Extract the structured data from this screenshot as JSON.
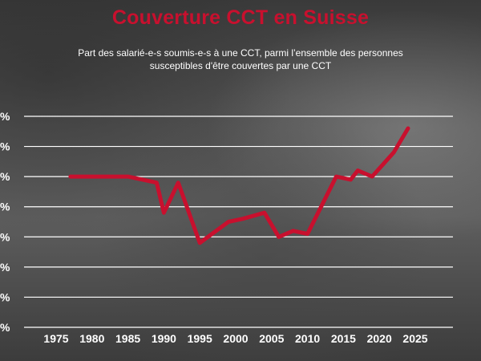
{
  "header": {
    "title": "Couverture CCT en Suisse",
    "subtitle": "Part des salarié-e-s soumis-e-s à une CCT, parmi l’ensemble des personnes susceptibles d'être couvertes par une CCT"
  },
  "colors": {
    "line": "#c8102e",
    "title": "#c8102e",
    "grid": "#ffffff",
    "text": "#ffffff"
  },
  "chart_data": {
    "type": "line",
    "title": "Couverture CCT en Suisse",
    "subtitle": "Part des salarié-e-s soumis-e-s à une CCT, parmi l’ensemble des personnes susceptibles d'être couvertes par une CCT",
    "xlabel": "",
    "ylabel": "",
    "x_ticks": [
      1975,
      1980,
      1985,
      1990,
      1995,
      2000,
      2005,
      2010,
      2015,
      2020,
      2025
    ],
    "y_tick_labels": [
      "%",
      "%",
      "%",
      "%",
      "%",
      "%",
      "%",
      "%"
    ],
    "xlim": [
      1975,
      2025
    ],
    "ylim": [
      0,
      7
    ],
    "grid": true,
    "series": [
      {
        "x": [
          1977,
          1979,
          1985,
          1989,
          1990,
          1992,
          1995,
          1999,
          2001,
          2004,
          2006,
          2008,
          2010,
          2014,
          2016,
          2017,
          2019,
          2022,
          2024
        ],
        "y": [
          5.0,
          5.0,
          5.0,
          4.8,
          3.8,
          4.8,
          2.8,
          3.5,
          3.6,
          3.8,
          3.0,
          3.2,
          3.1,
          5.0,
          4.9,
          5.2,
          5.0,
          5.8,
          6.6
        ]
      }
    ]
  }
}
